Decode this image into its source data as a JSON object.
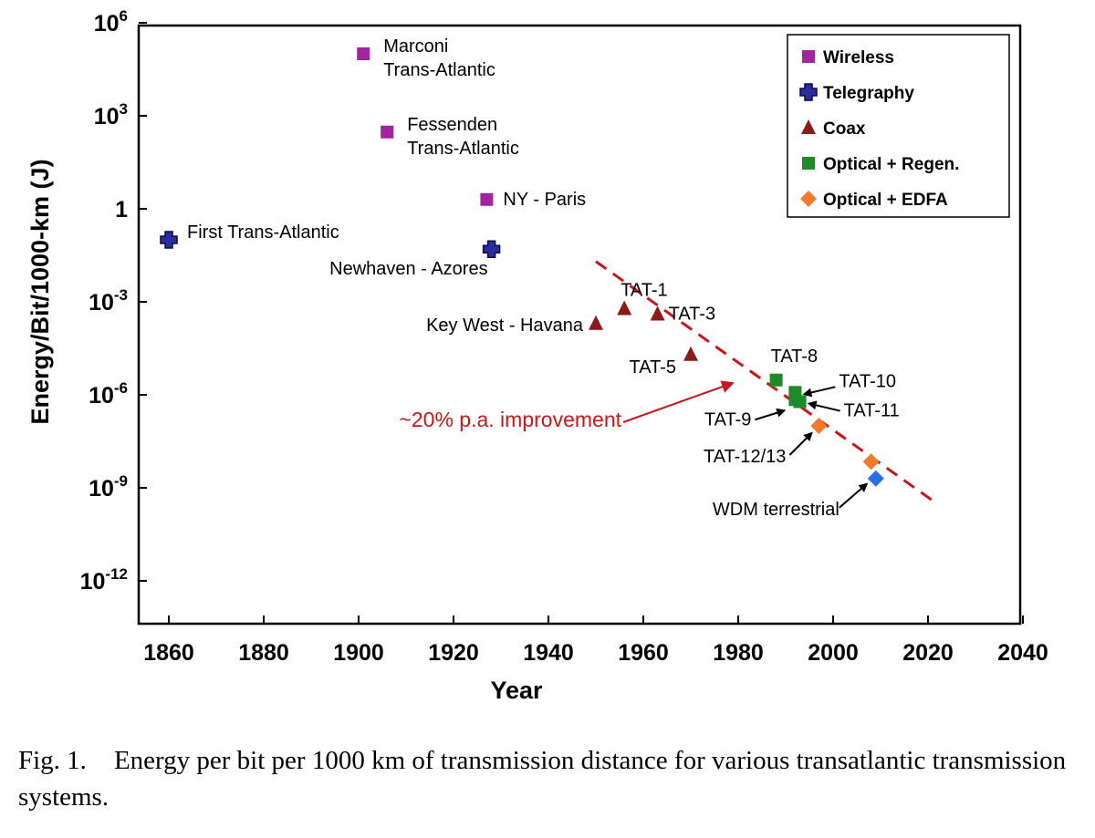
{
  "chart_data": {
    "type": "scatter",
    "xlabel": "Year",
    "ylabel": "Energy/Bit/1000-km (J)",
    "xlim": [
      1850,
      2040
    ],
    "ylim_log10": [
      -14,
      6
    ],
    "y_scale": "log",
    "grid": false,
    "legend_placement": "top-right",
    "x_ticks": [
      "1860",
      "1880",
      "1900",
      "1920",
      "1940",
      "1960",
      "1980",
      "2000",
      "2020",
      "2040"
    ],
    "y_ticks": [
      {
        "base": "10",
        "exp": "6"
      },
      {
        "base": "10",
        "exp": "3"
      },
      {
        "base": "1",
        "exp": ""
      },
      {
        "base": "10",
        "exp": "-3"
      },
      {
        "base": "10",
        "exp": "-6"
      },
      {
        "base": "10",
        "exp": "-9"
      },
      {
        "base": "10",
        "exp": "-12"
      }
    ],
    "series": [
      {
        "name": "Wireless",
        "marker": "square",
        "color": "#a0259e",
        "points": [
          {
            "x": 1901,
            "y": 100000,
            "label": "Marconi Trans-Atlantic"
          },
          {
            "x": 1906,
            "y": 300,
            "label": "Fessenden Trans-Atlantic"
          },
          {
            "x": 1927,
            "y": 2,
            "label": "NY - Paris"
          }
        ]
      },
      {
        "name": "Telegraphy",
        "marker": "cross",
        "color": "#2a2ca0",
        "points": [
          {
            "x": 1860,
            "y": 0.1,
            "label": "First Trans-Atlantic"
          },
          {
            "x": 1928,
            "y": 0.05,
            "label": "Newhaven - Azores"
          }
        ]
      },
      {
        "name": "Coax",
        "marker": "triangle",
        "color": "#8b1a1a",
        "points": [
          {
            "x": 1950,
            "y": 0.0002,
            "label": "Key West - Havana"
          },
          {
            "x": 1956,
            "y": 0.0006,
            "label": "TAT-1"
          },
          {
            "x": 1963,
            "y": 0.0004,
            "label": "TAT-3"
          },
          {
            "x": 1970,
            "y": 2e-05,
            "label": "TAT-5"
          }
        ]
      },
      {
        "name": "Optical + Regen.",
        "marker": "square",
        "color": "#1f8a2a",
        "points": [
          {
            "x": 1988,
            "y": 3e-06,
            "label": "TAT-8"
          },
          {
            "x": 1992,
            "y": 1.2e-06,
            "label": "TAT-10"
          },
          {
            "x": 1993,
            "y": 6e-07,
            "label": "TAT-11"
          },
          {
            "x": 1992,
            "y": 7e-07,
            "label": "TAT-9"
          }
        ]
      },
      {
        "name": "Optical + EDFA",
        "marker": "diamond",
        "color": "#f07a2e",
        "points": [
          {
            "x": 1997,
            "y": 1e-07,
            "label": "TAT-12/13"
          },
          {
            "x": 2008,
            "y": 7e-09,
            "label": ""
          }
        ]
      },
      {
        "name": "",
        "marker": "diamond",
        "color": "#2a6ee8",
        "points": [
          {
            "x": 2009,
            "y": 2e-09,
            "label": "WDM terrestrial"
          }
        ]
      }
    ],
    "trendline": {
      "x": [
        1950,
        2022
      ],
      "y": [
        0.02,
        3e-10
      ],
      "color": "#c8161d",
      "label": "~20% p.a. improvement"
    }
  },
  "caption": {
    "number": "Fig. 1.",
    "text": "Energy per bit per 1000 km of transmission distance for various transatlantic transmission systems."
  }
}
